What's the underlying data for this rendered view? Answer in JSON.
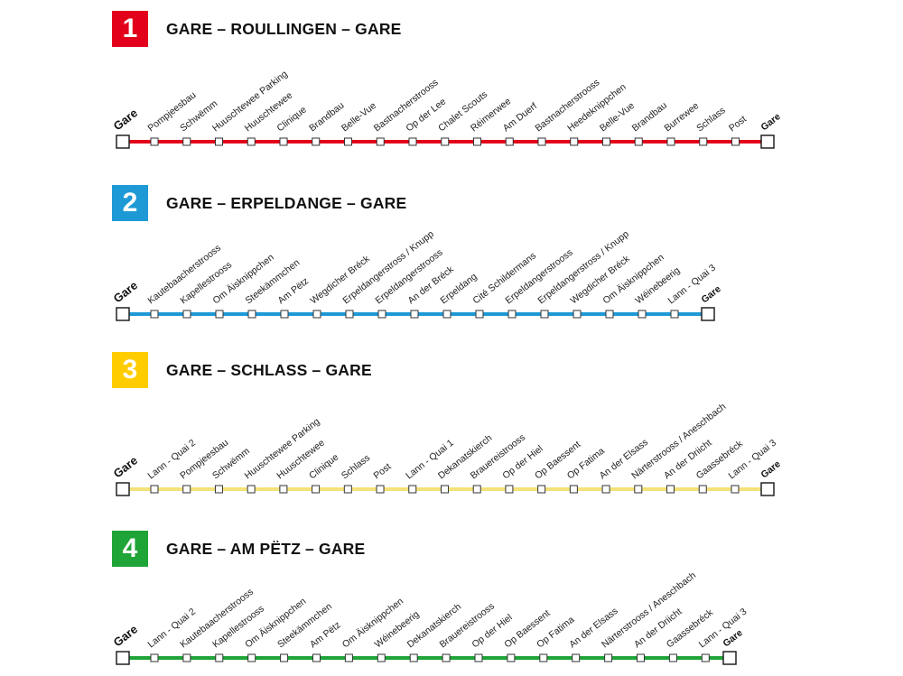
{
  "lines": [
    {
      "number": "1",
      "color": "#e2001a",
      "line_color": "#e2001a",
      "title": "GARE – ROULLINGEN – GARE",
      "start_terminal": "Gare",
      "end_terminal": "Gare",
      "stops": [
        "Pompjeesbau",
        "Schwëmm",
        "Huuschtewee Parking",
        "Huuschtewee",
        "Clinique",
        "Brandbau",
        "Belle-Vue",
        "Bastnacherstrooss",
        "Op der Lee",
        "Chalet Scouts",
        "Réimerwee",
        "Am Duerf",
        "Bastnacherstrooss",
        "Heedeknippchen",
        "Belle-Vue",
        "Brandbau",
        "Burrewee",
        "Schlass",
        "Post"
      ]
    },
    {
      "number": "2",
      "color": "#1d9ad6",
      "line_color": "#1d9ad6",
      "title": "GARE – ERPELDANGE – GARE",
      "start_terminal": "Gare",
      "end_terminal": "Gare",
      "stops": [
        "Kautebaacherstrooss",
        "Kapellestrooss",
        "Om Äisknippchen",
        "Steekämmchen",
        "Am Pëtz",
        "Wegdicher Bréck",
        "Erpeldangerstross / Knupp",
        "Erpeldangerstrooss",
        "An der Bréck",
        "Erpeldang",
        "Cité Schildermans",
        "Erpeldangerstrooss",
        "Erpeldangerstross / Knupp",
        "Wegdicher Bréck",
        "Om Äisknippchen",
        "Wéinebeerig",
        "Lann - Quai 3"
      ]
    },
    {
      "number": "3",
      "color": "#ffcc00",
      "line_color": "#f3e27a",
      "title": "GARE – SCHLASS – GARE",
      "start_terminal": "Gare",
      "end_terminal": "Gare",
      "stops": [
        "Lann - Quai 2",
        "Pompjeesbau",
        "Schwëmm",
        "Huuschtewee Parking",
        "Huuschtewee",
        "Clinique",
        "Schlass",
        "Post",
        "Lann - Quai 1",
        "Dekanatskierch",
        "Brauereistrooss",
        "Op der Hiel",
        "Op Baessent",
        "Op Fatima",
        "An der Elsass",
        "Närterstrooss / Aneschbach",
        "An der Driicht",
        "Gaassebréck",
        "Lann - Quai 3"
      ]
    },
    {
      "number": "4",
      "color": "#1fa437",
      "line_color": "#1fa437",
      "title": "GARE – AM PËTZ – GARE",
      "start_terminal": "Gare",
      "end_terminal": "Gare",
      "stops": [
        "Lann - Quai 2",
        "Kautebaacherstrooss",
        "Kapellestrooss",
        "Om Äisknippchen",
        "Steekämmchen",
        "Am Pëtz",
        "Om Äisknippchen",
        "Wéinebeerig",
        "Dekanatskierch",
        "Brauereistrooss",
        "Op der Hiel",
        "Op Baessent",
        "Op Fatima",
        "An der Elsass",
        "Närterstrooss / Aneschbach",
        "An der Driicht",
        "Gaassebréck",
        "Lann - Quai 3"
      ]
    }
  ]
}
